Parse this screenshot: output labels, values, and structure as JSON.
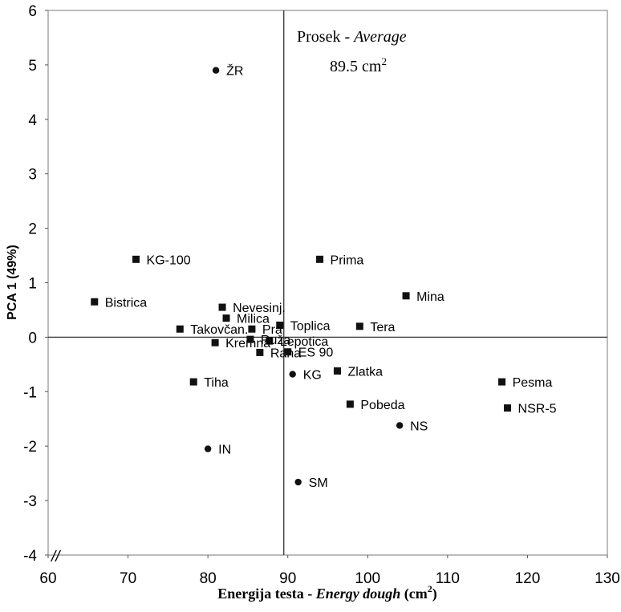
{
  "chart_data": {
    "type": "scatter",
    "xlabel": {
      "main": "Energija testa - ",
      "italic": "Energy dough",
      "unit": " (cm",
      "sup": "2",
      "close": ")"
    },
    "ylabel": "PCA 1 (49%)",
    "xlim": [
      60,
      130
    ],
    "ylim": [
      -4,
      6
    ],
    "xticks": [
      "60",
      "70",
      "80",
      "90",
      "100",
      "110",
      "120",
      "130"
    ],
    "yticks": [
      "6",
      "5",
      "4",
      "3",
      "2",
      "1",
      "0",
      "-1",
      "-2",
      "-3",
      "-4"
    ],
    "reference_lines": {
      "x": 89.5,
      "y": 0
    },
    "annotation": {
      "line1": "Prosek - ",
      "line1_italic": "Average",
      "line2": "89.5 cm",
      "line2_sup": "2"
    },
    "axis_break_mark": "//",
    "points": [
      {
        "label": "ŽR",
        "x": 81.0,
        "y": 4.9,
        "marker": "circle"
      },
      {
        "label": "KG-100",
        "x": 71.0,
        "y": 1.43,
        "marker": "square"
      },
      {
        "label": "Prima",
        "x": 94.0,
        "y": 1.43,
        "marker": "square"
      },
      {
        "label": "Bistrica",
        "x": 65.8,
        "y": 0.65,
        "marker": "square"
      },
      {
        "label": "Mina",
        "x": 104.8,
        "y": 0.76,
        "marker": "square"
      },
      {
        "label": "Nevesinj.",
        "x": 81.8,
        "y": 0.55,
        "marker": "square"
      },
      {
        "label": "Milica",
        "x": 82.3,
        "y": 0.35,
        "marker": "square"
      },
      {
        "label": "Toplica",
        "x": 89.0,
        "y": 0.22,
        "marker": "square"
      },
      {
        "label": "Tera",
        "x": 99.0,
        "y": 0.2,
        "marker": "square"
      },
      {
        "label": "Takovčan.",
        "x": 76.5,
        "y": 0.15,
        "marker": "square"
      },
      {
        "label": "Pra",
        "x": 85.5,
        "y": 0.15,
        "marker": "square"
      },
      {
        "label": "Lepotica",
        "x": 87.7,
        "y": -0.07,
        "marker": "square"
      },
      {
        "label": "Kremna",
        "x": 80.9,
        "y": -0.1,
        "marker": "square"
      },
      {
        "label": "Ruža",
        "x": 85.3,
        "y": -0.04,
        "marker": "square"
      },
      {
        "label": "Rana",
        "x": 86.5,
        "y": -0.28,
        "marker": "square"
      },
      {
        "label": "ES 90",
        "x": 90.0,
        "y": -0.27,
        "marker": "square"
      },
      {
        "label": "KG",
        "x": 90.6,
        "y": -0.68,
        "marker": "circle"
      },
      {
        "label": "Zlatka",
        "x": 96.2,
        "y": -0.62,
        "marker": "square"
      },
      {
        "label": "Tiha",
        "x": 78.2,
        "y": -0.82,
        "marker": "square"
      },
      {
        "label": "Pesma",
        "x": 116.8,
        "y": -0.82,
        "marker": "square"
      },
      {
        "label": "Pobeda",
        "x": 97.8,
        "y": -1.23,
        "marker": "square"
      },
      {
        "label": "NSR-5",
        "x": 117.5,
        "y": -1.3,
        "marker": "square"
      },
      {
        "label": "NS",
        "x": 104.0,
        "y": -1.62,
        "marker": "circle"
      },
      {
        "label": "IN",
        "x": 80.0,
        "y": -2.05,
        "marker": "circle"
      },
      {
        "label": "SM",
        "x": 91.3,
        "y": -2.66,
        "marker": "circle"
      }
    ]
  }
}
